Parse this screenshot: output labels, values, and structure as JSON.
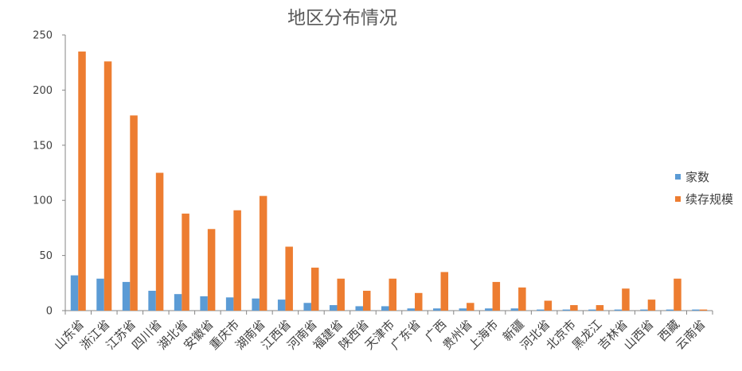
{
  "chart_data": {
    "type": "bar",
    "title": "地区分布情况",
    "xlabel": "",
    "ylabel": "",
    "categories": [
      "山东省",
      "浙江省",
      "江苏省",
      "四川省",
      "湖北省",
      "安徽省",
      "重庆市",
      "湖南省",
      "江西省",
      "河南省",
      "福建省",
      "陕西省",
      "天津市",
      "广东省",
      "广西",
      "贵州省",
      "上海市",
      "新疆",
      "河北省",
      "北京市",
      "黑龙江",
      "吉林省",
      "山西省",
      "西藏",
      "云南省"
    ],
    "series": [
      {
        "name": "家数",
        "color": "#5B9BD5",
        "values": [
          32,
          29,
          26,
          18,
          15,
          13,
          12,
          11,
          10,
          7,
          5,
          4,
          4,
          2,
          2,
          2,
          2,
          2,
          1,
          1,
          1,
          1,
          1,
          1,
          1
        ]
      },
      {
        "name": "续存规模",
        "color": "#ED7D31",
        "values": [
          235,
          226,
          177,
          125,
          88,
          74,
          91,
          104,
          58,
          39,
          29,
          18,
          29,
          16,
          35,
          7,
          26,
          21,
          9,
          5,
          5,
          20,
          10,
          29,
          1
        ]
      }
    ],
    "ylim": [
      0,
      250
    ],
    "yticks": [
      0,
      50,
      100,
      150,
      200,
      250
    ],
    "grid": false,
    "legend": "right"
  }
}
